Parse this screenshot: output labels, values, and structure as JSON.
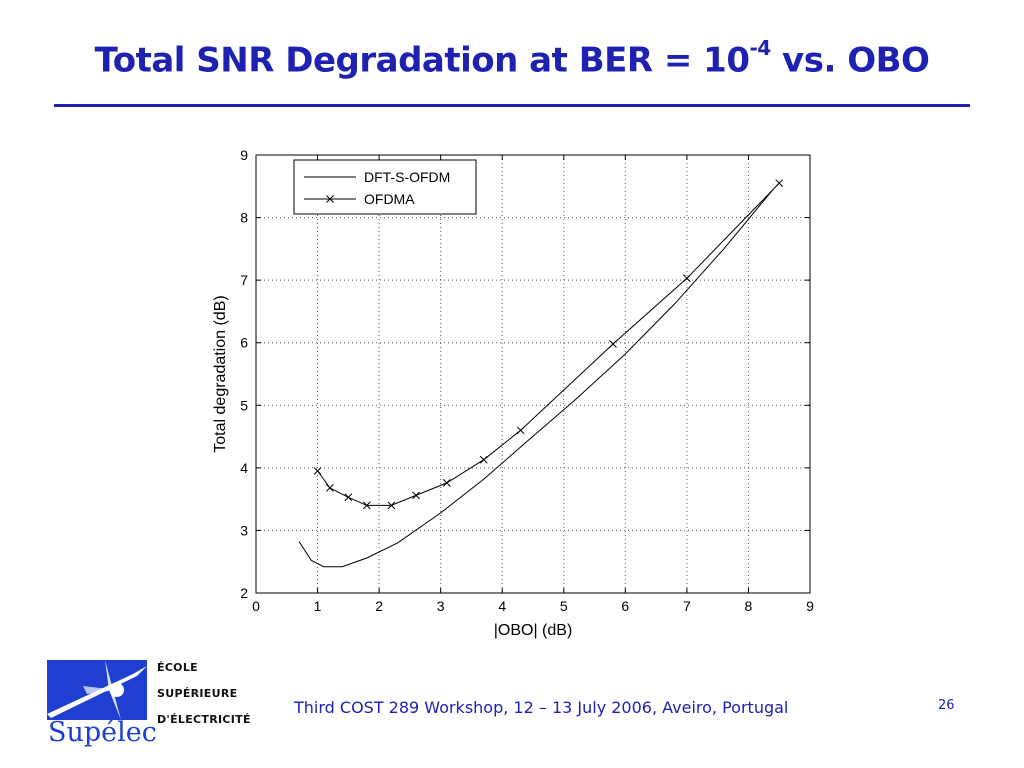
{
  "slide": {
    "title_main": "Total SNR Degradation at BER = 10",
    "title_exponent": "-4",
    "title_tail": " vs. OBO"
  },
  "chart_data": {
    "type": "line",
    "xlabel": "|OBO| (dB)",
    "ylabel": "Total degradation (dB)",
    "xlim": [
      0,
      9
    ],
    "ylim": [
      2,
      9
    ],
    "xticks": [
      0,
      1,
      2,
      3,
      4,
      5,
      6,
      7,
      8,
      9
    ],
    "yticks": [
      2,
      3,
      4,
      5,
      6,
      7,
      8,
      9
    ],
    "grid": true,
    "legend_position": "top-left",
    "series": [
      {
        "name": "DFT-S-OFDM",
        "marker": "none",
        "x": [
          0.7,
          0.9,
          1.1,
          1.4,
          1.8,
          2.3,
          3.0,
          3.7,
          4.4,
          5.2,
          6.0,
          6.8,
          7.6,
          8.4
        ],
        "y": [
          2.82,
          2.52,
          2.42,
          2.42,
          2.56,
          2.8,
          3.28,
          3.82,
          4.42,
          5.1,
          5.82,
          6.62,
          7.5,
          8.45
        ]
      },
      {
        "name": "OFDMA",
        "marker": "x",
        "x": [
          1.0,
          1.2,
          1.5,
          1.8,
          2.2,
          2.6,
          3.1,
          3.7,
          4.3,
          5.8,
          7.0,
          8.5
        ],
        "y": [
          3.95,
          3.68,
          3.53,
          3.4,
          3.4,
          3.56,
          3.76,
          4.13,
          4.6,
          5.98,
          7.03,
          8.55
        ]
      }
    ],
    "line_color": "#000000",
    "grid_color": "#555555"
  },
  "logo": {
    "line1": "ÉCOLE",
    "line2": "SUPÉRIEURE",
    "line3": "D'ÉLECTRICITÉ",
    "wordmark": "Supélec",
    "accent_color": "#1f3fd0"
  },
  "footer": {
    "text": "Third COST 289 Workshop, 12 – 13 July 2006,  Aveiro, Portugal",
    "page_number": "26"
  }
}
